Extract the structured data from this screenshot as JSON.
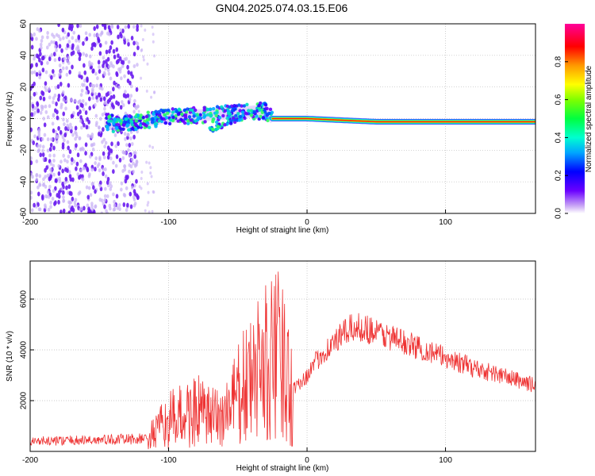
{
  "title": "GN04.2025.074.03.15.E06",
  "colors": {
    "spectro_dots": "#6a1cf0",
    "spectro_fade": "#c8b0f5",
    "snr_line": "#ee3333",
    "axis": "#000000"
  },
  "chart_data": [
    {
      "type": "heatmap",
      "xlabel": "Height of straight line (km)",
      "ylabel": "Frequency (Hz)",
      "xlim": [
        -200,
        165
      ],
      "ylim": [
        -60,
        60
      ],
      "xticks": [
        -200,
        -100,
        0,
        100
      ],
      "yticks": [
        -60,
        -40,
        -20,
        0,
        20,
        40,
        60
      ],
      "grid": true,
      "colorbar": {
        "label": "Normalized spectral amplitude",
        "range": [
          0,
          1
        ],
        "ticks": [
          "0.0",
          "0.2",
          "0.4",
          "0.6",
          "0.8"
        ],
        "colormap": "rainbow"
      },
      "ridge": {
        "description_values": [
          {
            "x": -140,
            "y": -4
          },
          {
            "x": -100,
            "y": 1
          },
          {
            "x": -60,
            "y": 3
          },
          {
            "x": -30,
            "y": 5
          },
          {
            "x": -25,
            "y": 0
          },
          {
            "x": 0,
            "y": 0
          },
          {
            "x": 50,
            "y": -2
          },
          {
            "x": 100,
            "y": -2
          },
          {
            "x": 165,
            "y": -2
          }
        ]
      }
    },
    {
      "type": "line",
      "xlabel": "Height of straight line (km)",
      "ylabel": "SNR (10 * v/v)",
      "xlim": [
        -200,
        165
      ],
      "ylim": [
        0,
        7500
      ],
      "xticks": [
        -200,
        -100,
        0,
        100
      ],
      "yticks": [
        2000,
        4000,
        6000
      ],
      "grid": true,
      "envelope": {
        "x": [
          -200,
          -150,
          -115,
          -100,
          -80,
          -70,
          -60,
          -50,
          -40,
          -30,
          -20,
          -10,
          0,
          10,
          20,
          30,
          40,
          50,
          60,
          80,
          100,
          120,
          140,
          165
        ],
        "y": [
          400,
          450,
          500,
          1200,
          1600,
          1300,
          1400,
          2200,
          2800,
          3400,
          3700,
          2500,
          3000,
          3800,
          4300,
          4800,
          4900,
          4700,
          4500,
          4100,
          3700,
          3300,
          3000,
          2600
        ]
      }
    }
  ]
}
